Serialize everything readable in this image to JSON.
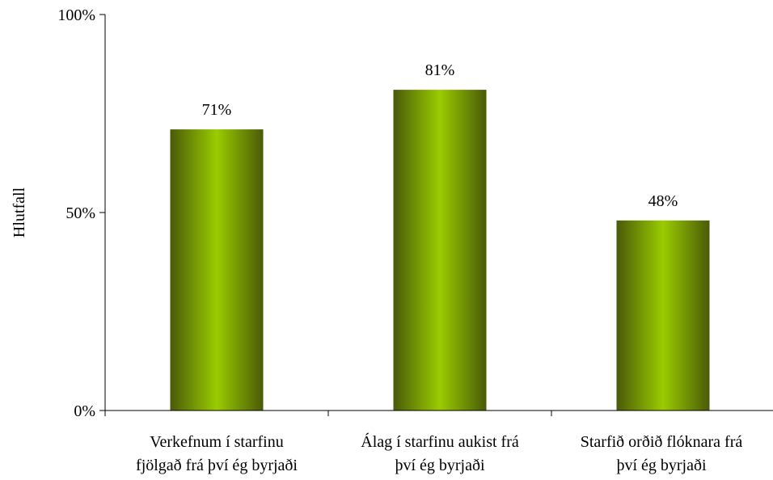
{
  "chart_data": {
    "type": "bar",
    "title": "",
    "xlabel": "",
    "ylabel": "Hlutfall",
    "ylim": [
      0,
      100
    ],
    "yticks": [
      {
        "value": 0,
        "label": "0%"
      },
      {
        "value": 50,
        "label": "50%"
      },
      {
        "value": 100,
        "label": "100%"
      }
    ],
    "grid": false,
    "categories": [
      [
        "Verkefnum í starfinu",
        "fjölgað frá því ég byrjaði"
      ],
      [
        "Álag í starfinu aukist frá",
        "því ég byrjaði"
      ],
      [
        "Starfið orðið flóknara frá",
        "því ég byrjaði"
      ]
    ],
    "values": [
      71,
      81,
      48
    ],
    "data_labels": [
      "71%",
      "81%",
      "48%"
    ],
    "colors": {
      "bar_dark": "#4a5a08",
      "bar_light": "#9acc00",
      "axis": "#000000"
    }
  }
}
